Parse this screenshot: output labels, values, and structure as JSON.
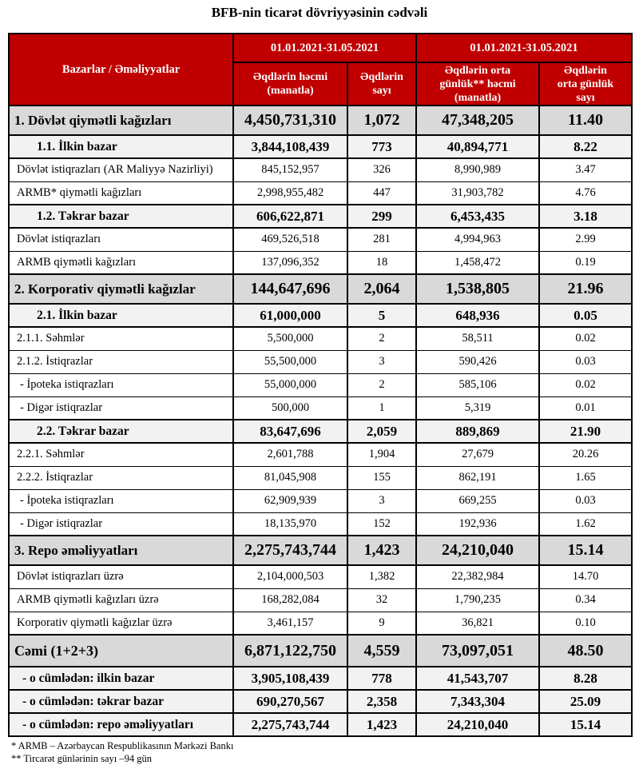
{
  "title": "BFB-nin ticarət dövriyyəsinin cədvəli",
  "table": {
    "header": {
      "col0": "Bazarlar / Əməliyyatlar",
      "period1": "01.01.2021-31.05.2021",
      "period2": "01.01.2021-31.05.2021",
      "cols": [
        "Əqdlərin həcmi (manatla)",
        "Əqdlərin sayı",
        "Əqdlərin orta günlük** həcmi (manatla)",
        "Əqdlərin orta günlük sayı"
      ]
    },
    "rows": [
      {
        "label": "1. Dövlət qiymətli kağızları",
        "values": [
          "4,450,731,310",
          "1,072",
          "47,348,205",
          "11.40"
        ],
        "style": "section"
      },
      {
        "label": "1.1. İlkin bazar",
        "values": [
          "3,844,108,439",
          "773",
          "40,894,771",
          "8.22"
        ],
        "style": "sub"
      },
      {
        "label": "Dövlət istiqrazları (AR Maliyyə Nazirliyi)",
        "values": [
          "845,152,957",
          "326",
          "8,990,989",
          "3.47"
        ],
        "style": "plain"
      },
      {
        "label": "ARMB* qiymətli kağızları",
        "values": [
          "2,998,955,482",
          "447",
          "31,903,782",
          "4.76"
        ],
        "style": "plain"
      },
      {
        "label": "1.2. Təkrar bazar",
        "values": [
          "606,622,871",
          "299",
          "6,453,435",
          "3.18"
        ],
        "style": "sub"
      },
      {
        "label": "Dövlət istiqrazları",
        "values": [
          "469,526,518",
          "281",
          "4,994,963",
          "2.99"
        ],
        "style": "plain"
      },
      {
        "label": "ARMB qiymətli kağızları",
        "values": [
          "137,096,352",
          "18",
          "1,458,472",
          "0.19"
        ],
        "style": "plain"
      },
      {
        "label": "2. Korporativ qiymətli kağızlar",
        "values": [
          "144,647,696",
          "2,064",
          "1,538,805",
          "21.96"
        ],
        "style": "section"
      },
      {
        "label": "2.1. İlkin bazar",
        "values": [
          "61,000,000",
          "5",
          "648,936",
          "0.05"
        ],
        "style": "sub"
      },
      {
        "label": "2.1.1. Səhmlər",
        "values": [
          "5,500,000",
          "2",
          "58,511",
          "0.02"
        ],
        "style": "plain"
      },
      {
        "label": "2.1.2. İstiqrazlar",
        "values": [
          "55,500,000",
          "3",
          "590,426",
          "0.03"
        ],
        "style": "plain"
      },
      {
        "label": "- İpoteka istiqrazları",
        "values": [
          "55,000,000",
          "2",
          "585,106",
          "0.02"
        ],
        "style": "dash"
      },
      {
        "label": "- Digər istiqrazlar",
        "values": [
          "500,000",
          "1",
          "5,319",
          "0.01"
        ],
        "style": "dash"
      },
      {
        "label": "2.2. Təkrar bazar",
        "values": [
          "83,647,696",
          "2,059",
          "889,869",
          "21.90"
        ],
        "style": "sub"
      },
      {
        "label": "2.2.1. Səhmlər",
        "values": [
          "2,601,788",
          "1,904",
          "27,679",
          "20.26"
        ],
        "style": "plain"
      },
      {
        "label": "2.2.2. İstiqrazlar",
        "values": [
          "81,045,908",
          "155",
          "862,191",
          "1.65"
        ],
        "style": "plain"
      },
      {
        "label": "- İpoteka istiqrazları",
        "values": [
          "62,909,939",
          "3",
          "669,255",
          "0.03"
        ],
        "style": "dash"
      },
      {
        "label": "- Digər istiqrazlar",
        "values": [
          "18,135,970",
          "152",
          "192,936",
          "1.62"
        ],
        "style": "dash"
      },
      {
        "label": "3. Repo əməliyyatları",
        "values": [
          "2,275,743,744",
          "1,423",
          "24,210,040",
          "15.14"
        ],
        "style": "section"
      },
      {
        "label": "Dövlət istiqrazları üzrə",
        "values": [
          "2,104,000,503",
          "1,382",
          "22,382,984",
          "14.70"
        ],
        "style": "plain"
      },
      {
        "label": "ARMB qiymətli kağızları üzrə",
        "values": [
          "168,282,084",
          "32",
          "1,790,235",
          "0.34"
        ],
        "style": "plain"
      },
      {
        "label": "Korporativ qiymətli kağızlar üzrə",
        "values": [
          "3,461,157",
          "9",
          "36,821",
          "0.10"
        ],
        "style": "plain"
      },
      {
        "label": "Cəmi (1+2+3)",
        "values": [
          "6,871,122,750",
          "4,559",
          "73,097,051",
          "48.50"
        ],
        "style": "total"
      },
      {
        "label": "- o cümlədən: ilkin bazar",
        "values": [
          "3,905,108,439",
          "778",
          "41,543,707",
          "8.28"
        ],
        "style": "subtotal"
      },
      {
        "label": "- o cümlədən: təkrar bazar",
        "values": [
          "690,270,567",
          "2,358",
          "7,343,304",
          "25.09"
        ],
        "style": "subtotal"
      },
      {
        "label": "- o cümlədən: repo əməliyyatları",
        "values": [
          "2,275,743,744",
          "1,423",
          "24,210,040",
          "15.14"
        ],
        "style": "subtotal"
      }
    ]
  },
  "footnotes": [
    "* ARMB – Azərbaycan Respublikasının Mərkəzi Bankı",
    "** Tircarət günlərinin sayı –94 gün"
  ]
}
